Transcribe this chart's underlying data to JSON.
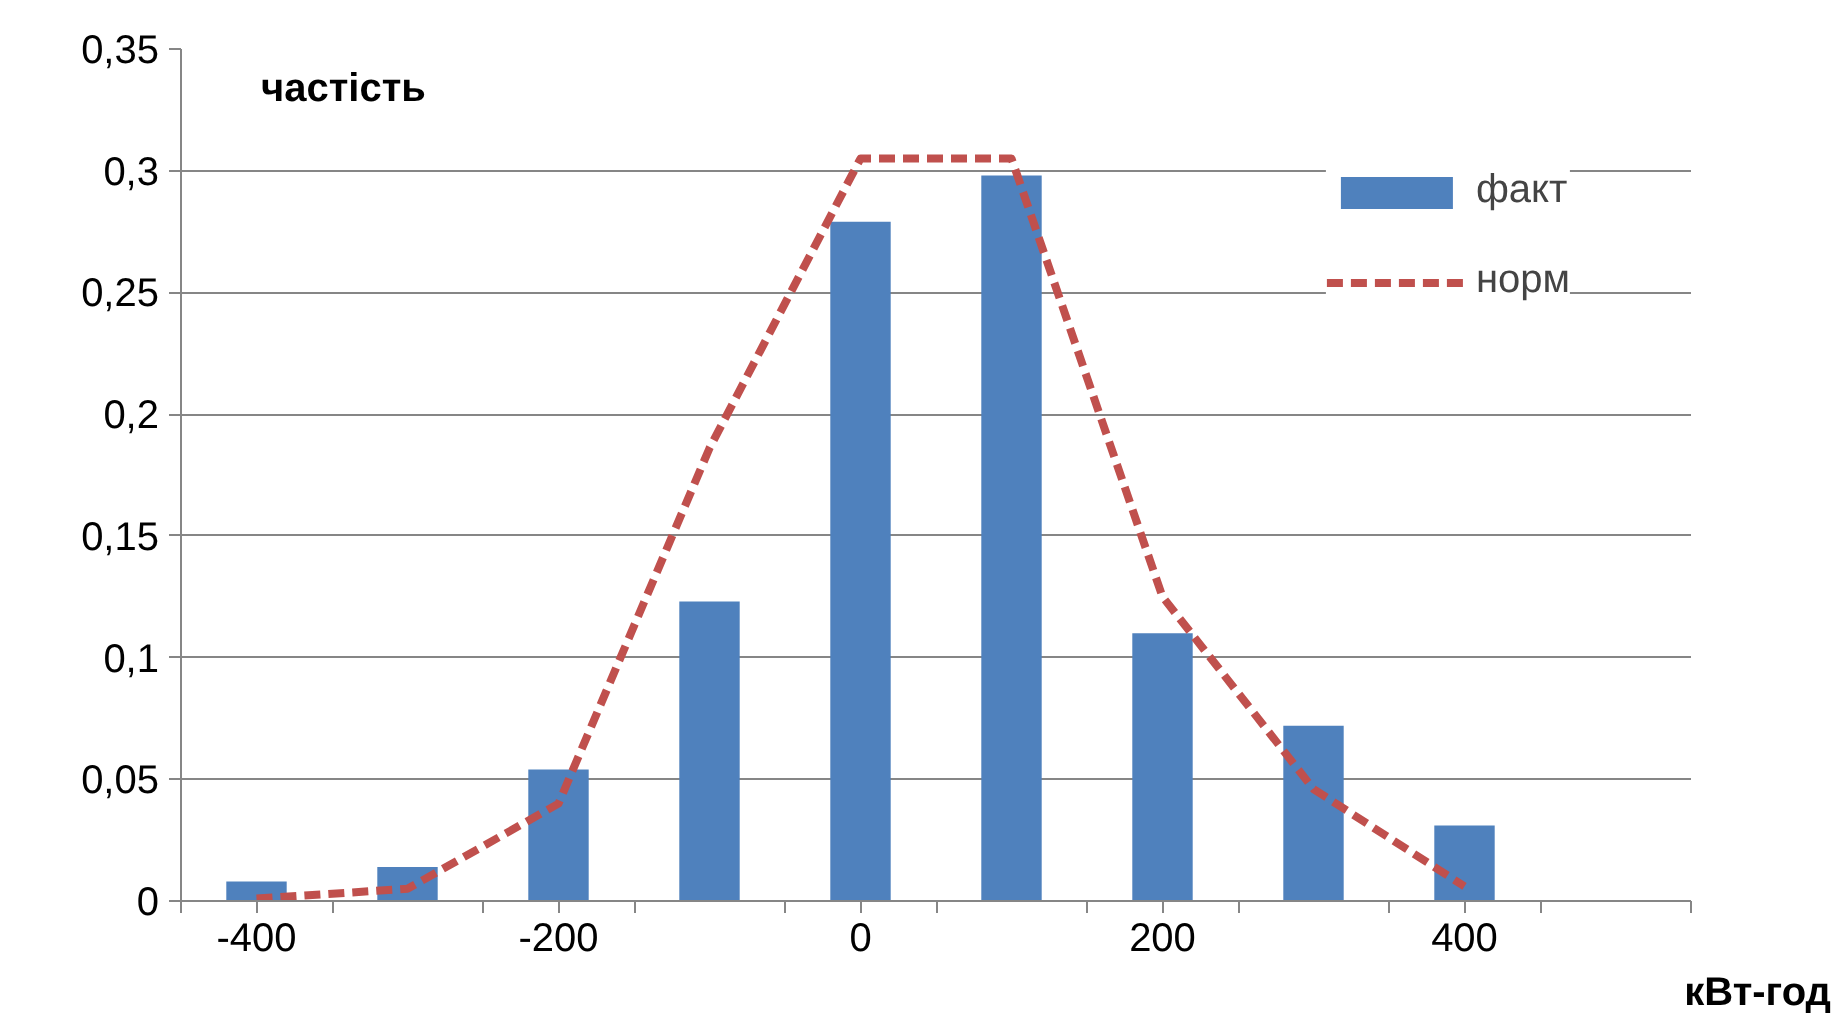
{
  "chart_data": {
    "type": "bar",
    "xlabel": "кВт-год",
    "ylabel": "частість",
    "x": [
      -400,
      -300,
      -200,
      -100,
      0,
      100,
      200,
      300,
      400
    ],
    "series": [
      {
        "name": "факт",
        "color": "#4f81bd",
        "values": [
          0.008,
          0.014,
          0.054,
          0.123,
          0.279,
          0.298,
          0.11,
          0.072,
          0.031
        ]
      },
      {
        "name": "норм",
        "type": "line",
        "color": "#c0504d",
        "line_style": "dashed",
        "values": [
          0.001,
          0.005,
          0.04,
          0.186,
          0.305,
          0.305,
          0.125,
          0.046,
          0.006
        ]
      }
    ],
    "xlim": [
      -450,
      550
    ],
    "xticks": [
      {
        "value": -450,
        "label": null
      },
      {
        "value": -400,
        "label": "-400"
      },
      {
        "value": -350,
        "label": null
      },
      {
        "value": -250,
        "label": null
      },
      {
        "value": -200,
        "label": "-200"
      },
      {
        "value": -150,
        "label": null
      },
      {
        "value": -50,
        "label": null
      },
      {
        "value": 0,
        "label": "0"
      },
      {
        "value": 50,
        "label": null
      },
      {
        "value": 150,
        "label": null
      },
      {
        "value": 200,
        "label": "200"
      },
      {
        "value": 250,
        "label": null
      },
      {
        "value": 350,
        "label": null
      },
      {
        "value": 400,
        "label": "400"
      },
      {
        "value": 450,
        "label": null
      },
      {
        "value": 550,
        "label": null
      }
    ],
    "ylim": [
      0,
      0.35
    ],
    "yticks": [
      {
        "value": 0,
        "label": "0"
      },
      {
        "value": 0.05,
        "label": "0,05"
      },
      {
        "value": 0.1,
        "label": "0,1"
      },
      {
        "value": 0.15,
        "label": "0,15"
      },
      {
        "value": 0.2,
        "label": "0,2"
      },
      {
        "value": 0.25,
        "label": "0,25"
      },
      {
        "value": 0.3,
        "label": "0,3"
      },
      {
        "value": 0.35,
        "label": "0,35"
      }
    ],
    "grid": "y",
    "legend": "top right"
  }
}
